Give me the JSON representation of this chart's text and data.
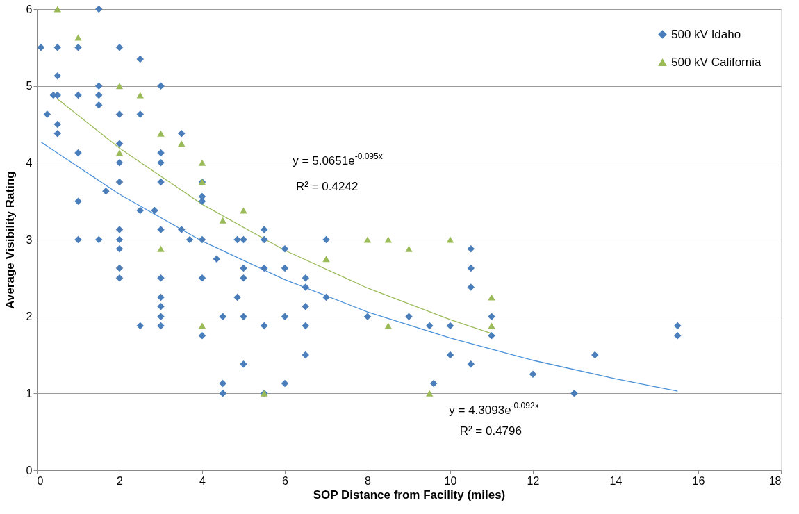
{
  "chart_data": {
    "type": "scatter",
    "xlabel": "SOP Distance from Facility (miles)",
    "ylabel": "Average Visibility Rating",
    "xlim": [
      0,
      18
    ],
    "xticks": [
      0,
      2,
      4,
      6,
      8,
      10,
      12,
      14,
      16,
      18
    ],
    "ylim": [
      0,
      6
    ],
    "yticks": [
      0,
      1,
      2,
      3,
      4,
      5,
      6
    ],
    "grid": "y",
    "legend": "top right",
    "series": [
      {
        "name": "500 kV Idaho",
        "color": "#4a7ebb",
        "marker": "diamond",
        "x": [
          0.1,
          0.25,
          0.4,
          0.5,
          0.5,
          0.5,
          0.5,
          0.5,
          1,
          1,
          1,
          1,
          1,
          1.5,
          1.5,
          1.5,
          1.5,
          1.5,
          1.67,
          2,
          2,
          2,
          2,
          2,
          2,
          2,
          2,
          2,
          2,
          2.5,
          2.5,
          2.5,
          2.5,
          2.85,
          3,
          3,
          3,
          3,
          3,
          3,
          3,
          3,
          3,
          3,
          3.5,
          3.5,
          3.7,
          4,
          4,
          4,
          4,
          4,
          4,
          4.35,
          4.5,
          4.5,
          4.5,
          4.85,
          4.85,
          5,
          5,
          5,
          5,
          5,
          5.5,
          5.5,
          5.5,
          5.5,
          5.5,
          6,
          6,
          6,
          6,
          6.5,
          6.5,
          6.5,
          6.5,
          6.5,
          7,
          7,
          8,
          9,
          9.5,
          9.6,
          10,
          10,
          10.5,
          10.5,
          10.5,
          10.5,
          11,
          11,
          12,
          13,
          13.5,
          15.5,
          15.5
        ],
        "values": [
          5.5,
          4.63,
          4.88,
          5.5,
          5.13,
          4.88,
          4.5,
          4.38,
          5.5,
          4.88,
          4.13,
          3.5,
          3.0,
          6.0,
          5.0,
          4.88,
          4.75,
          3.0,
          3.63,
          5.5,
          4.63,
          4.25,
          4.0,
          3.75,
          3.13,
          3.0,
          2.88,
          2.63,
          2.5,
          5.35,
          4.63,
          3.38,
          1.88,
          3.38,
          5.0,
          4.13,
          4.0,
          3.75,
          3.13,
          2.5,
          2.25,
          2.13,
          2.0,
          1.88,
          4.38,
          3.13,
          3.0,
          3.75,
          3.56,
          3.5,
          3.0,
          2.5,
          1.75,
          2.75,
          2.0,
          1.13,
          1.0,
          3.0,
          2.25,
          3.0,
          2.63,
          2.5,
          2.0,
          1.38,
          3.13,
          3.0,
          2.63,
          1.88,
          1.0,
          2.88,
          2.63,
          2.0,
          1.13,
          2.5,
          2.38,
          2.13,
          1.88,
          1.5,
          3.0,
          2.25,
          2.0,
          2.0,
          1.88,
          1.13,
          1.88,
          1.5,
          2.88,
          2.63,
          2.38,
          1.38,
          2.0,
          1.75,
          1.25,
          1.0,
          1.5,
          1.88,
          1.75
        ]
      },
      {
        "name": "500 kV California",
        "color": "#9bbb59",
        "marker": "triangle",
        "x": [
          0.5,
          1,
          2,
          2,
          2.5,
          3,
          3,
          3.5,
          4,
          4,
          4,
          4.5,
          5,
          5.5,
          7,
          8,
          8.5,
          8.5,
          9,
          9.5,
          10,
          11,
          11
        ],
        "values": [
          6.0,
          5.63,
          5.0,
          4.13,
          4.88,
          4.38,
          2.88,
          4.25,
          4.0,
          3.75,
          1.88,
          3.25,
          3.38,
          1.0,
          2.75,
          3.0,
          3.0,
          1.88,
          2.88,
          1.0,
          3.0,
          2.25,
          1.88
        ]
      },
      {
        "color": "#9bbb59",
        "type": "line",
        "x": [
          0.5,
          2,
          4,
          6,
          8,
          10,
          11
        ],
        "values": [
          4.83,
          4.19,
          3.46,
          2.86,
          2.37,
          1.96,
          1.78
        ]
      },
      {
        "color": "#4a90d9",
        "type": "line",
        "x": [
          0.1,
          2,
          4,
          6,
          8,
          10,
          12,
          14,
          15.5
        ],
        "values": [
          4.27,
          3.59,
          2.98,
          2.48,
          2.06,
          1.72,
          1.43,
          1.19,
          1.03
        ]
      }
    ],
    "annotations": [
      "y = 5.0651e$^{-0.095x}$",
      "R² = 0.4242",
      "y = 4.3093e$^{-0.092x}$",
      "R² = 0.4796"
    ]
  }
}
